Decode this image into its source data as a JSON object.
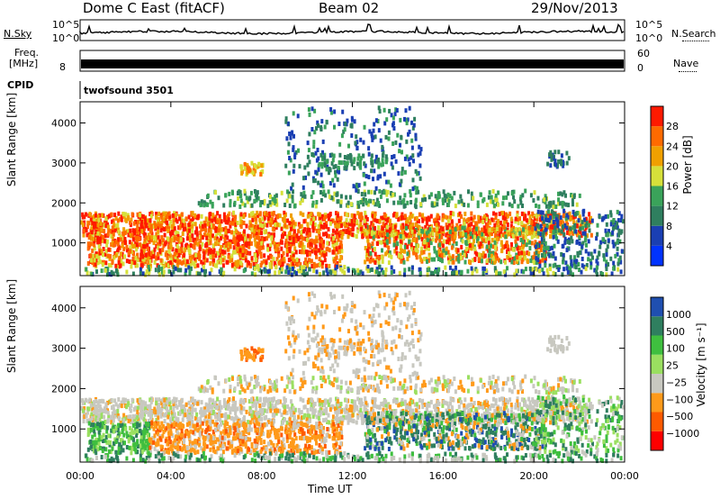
{
  "header": {
    "station": "Dome C East (fitACF)",
    "beam": "Beam 02",
    "date": "29/Nov/2013"
  },
  "strips": {
    "nsky_label": "N.Sky",
    "nsky_ticks": [
      "10^5",
      "10^0"
    ],
    "freq_label_1": "Freq.",
    "freq_label_2": "[MHz]",
    "freq_ticks": [
      "8"
    ],
    "cpid_label": "CPID",
    "cpid_value": "twofsound 3501",
    "nsearch_label": "N.Search",
    "nsearch_ticks": [
      "10^5",
      "10^0"
    ],
    "nave_label": "Nave",
    "nave_ticks": [
      "60",
      "0"
    ]
  },
  "colors": {
    "power": [
      "#0033ff",
      "#1a3fb3",
      "#2f7f5f",
      "#3aa35a",
      "#d6e03a",
      "#f0a000",
      "#ff6a00",
      "#ff1a00"
    ],
    "velocity": [
      "#ff0000",
      "#ff5a00",
      "#ff9a1a",
      "#c8c8c0",
      "#9adf60",
      "#3fbf3f",
      "#2f7f5f",
      "#1f4fb0"
    ]
  },
  "chart_data": [
    {
      "type": "heatmap",
      "panel": "power",
      "ylabel": "Slant Range [km]",
      "xlabel": "",
      "x_ticks": [
        "00:00",
        "04:00",
        "08:00",
        "12:00",
        "16:00",
        "20:00",
        "00:00"
      ],
      "y_ticks": [
        1000,
        2000,
        3000,
        4000
      ],
      "xlim_hours": [
        0,
        24
      ],
      "ylim_km": [
        180,
        4530
      ],
      "colorbar_label": "Power [dB]",
      "colorbar_ticks": [
        4,
        8,
        12,
        16,
        20,
        24,
        28
      ],
      "colorbar_range": [
        0,
        32
      ]
    },
    {
      "type": "heatmap",
      "panel": "velocity",
      "ylabel": "Slant Range [km]",
      "xlabel": "Time UT",
      "x_ticks": [
        "00:00",
        "04:00",
        "08:00",
        "12:00",
        "16:00",
        "20:00",
        "00:00"
      ],
      "y_ticks": [
        1000,
        2000,
        3000,
        4000
      ],
      "xlim_hours": [
        0,
        24
      ],
      "ylim_km": [
        180,
        4530
      ],
      "colorbar_label": "Velocity [m s⁻¹]",
      "colorbar_ticks": [
        "1000",
        "500",
        "100",
        "25",
        "−25",
        "−100",
        "−500",
        "−1000"
      ]
    }
  ]
}
